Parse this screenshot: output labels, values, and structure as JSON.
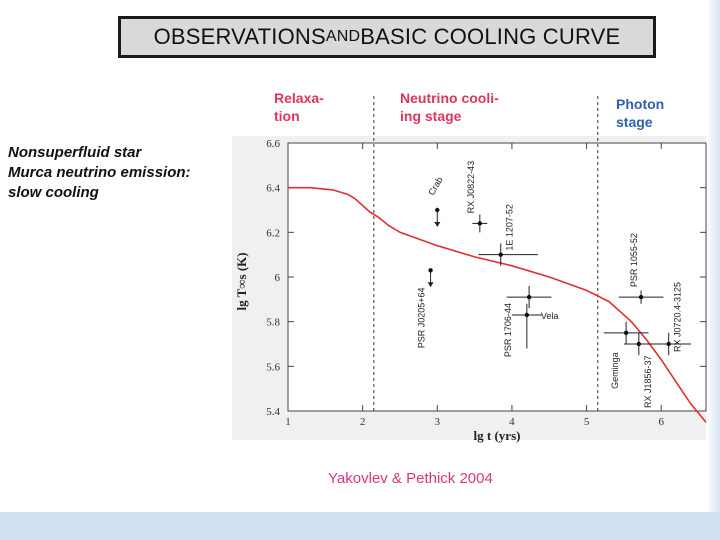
{
  "slide": {
    "title_part1": "OBSERVATIONS ",
    "title_and": "AND",
    "title_part2": " BASIC COOLING CURVE",
    "left_note": {
      "line1": "Nonsuperfluid star",
      "line2": "Murca neutrino emission:",
      "line3": "slow cooling"
    },
    "stages": {
      "relaxation": "Relaxa-\ntion",
      "neutrino": "Neutrino cooli-\ning stage",
      "photon": "Photon\nstage"
    },
    "citation": "Yakovlev & Pethick 2004",
    "colors": {
      "stage_pink": "#e0345f",
      "stage_blue": "#2f5fb3",
      "curve": "#e03030",
      "citation": "#d8377d"
    }
  },
  "chart_data": {
    "type": "scatter",
    "xlabel": "lg t   (yrs)",
    "ylabel": "lg T∞s  (K)",
    "xlim": [
      1,
      6.6
    ],
    "ylim": [
      5.4,
      6.6
    ],
    "xticks": [
      1,
      2,
      3,
      4,
      5,
      6
    ],
    "yticks": [
      5.4,
      5.6,
      5.8,
      6.0,
      6.2,
      6.4,
      6.6
    ],
    "ytick_labels": [
      "5.4",
      "5.6",
      "5.8",
      "6",
      "6.2",
      "6.4",
      "6.6"
    ],
    "stage_boundaries": [
      2.15,
      5.15
    ],
    "cooling_curve": {
      "name": "basic cooling curve",
      "x": [
        1.0,
        1.3,
        1.6,
        1.8,
        1.9,
        2.0,
        2.1,
        2.2,
        2.35,
        2.5,
        3.0,
        3.5,
        4.0,
        4.5,
        5.0,
        5.3,
        5.6,
        5.8,
        6.0,
        6.2,
        6.4,
        6.6
      ],
      "y": [
        6.4,
        6.4,
        6.39,
        6.37,
        6.35,
        6.32,
        6.29,
        6.27,
        6.23,
        6.2,
        6.14,
        6.09,
        6.05,
        6.0,
        5.94,
        5.89,
        5.8,
        5.72,
        5.63,
        5.53,
        5.43,
        5.35
      ]
    },
    "observations": [
      {
        "name": "Crab",
        "x": 3.0,
        "y": 6.3,
        "upper_limit": true
      },
      {
        "name": "RX J0822-43",
        "x": 3.57,
        "y": 6.24,
        "xerr": [
          0.1,
          0.1
        ],
        "yerr": [
          0.04,
          0.04
        ]
      },
      {
        "name": "1E 1207-52",
        "x": 3.85,
        "y": 6.1,
        "xerr": [
          0.3,
          0.5
        ],
        "yerr": [
          0.05,
          0.05
        ]
      },
      {
        "name": "PSR J0205+64",
        "x": 2.91,
        "y": 6.03,
        "upper_limit": true
      },
      {
        "name": "PSR 1706-44",
        "x": 4.23,
        "y": 5.91,
        "xerr": [
          0.3,
          0.3
        ],
        "yerr": [
          0.05,
          0.05
        ]
      },
      {
        "name": "Vela",
        "x": 4.2,
        "y": 5.83,
        "xerr": [
          0.2,
          0.2
        ],
        "yerr": [
          0.15,
          0.05
        ]
      },
      {
        "name": "PSR 1055-52",
        "x": 5.73,
        "y": 5.91,
        "xerr": [
          0.3,
          0.3
        ],
        "yerr": [
          0.03,
          0.03
        ]
      },
      {
        "name": "Geminga",
        "x": 5.53,
        "y": 5.75,
        "xerr": [
          0.3,
          0.3
        ],
        "yerr": [
          0.05,
          0.05
        ]
      },
      {
        "name": "RX J1856-37",
        "x": 5.7,
        "y": 5.7,
        "xerr": [
          0.2,
          0.2
        ],
        "yerr": [
          0.05,
          0.05
        ]
      },
      {
        "name": "RX J0720.4-3125",
        "x": 6.1,
        "y": 5.7,
        "xerr": [
          0.3,
          0.3
        ],
        "yerr": [
          0.05,
          0.05
        ]
      }
    ]
  }
}
